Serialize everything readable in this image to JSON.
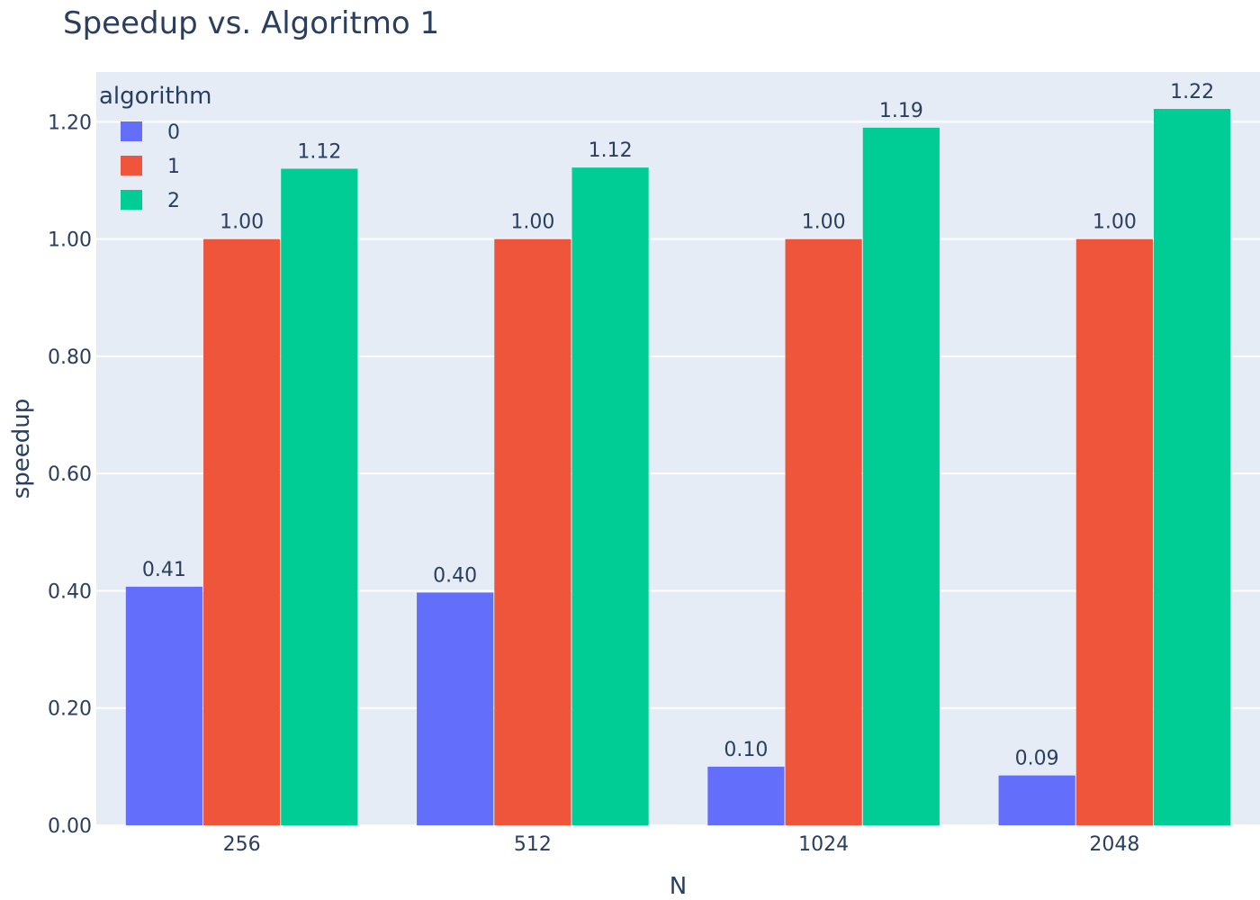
{
  "chart_data": {
    "type": "bar",
    "title": "Speedup vs. Algoritmo 1",
    "xlabel": "N",
    "ylabel": "speedup",
    "categories": [
      "256",
      "512",
      "1024",
      "2048"
    ],
    "ylim": [
      0,
      1.285
    ],
    "yticks": [
      "0.00",
      "0.20",
      "0.40",
      "0.60",
      "0.80",
      "1.00",
      "1.20"
    ],
    "grid": true,
    "legend": {
      "title": "algorithm",
      "placement": "top-left"
    },
    "series": [
      {
        "name": "0",
        "color": "#636efa",
        "values": [
          0.407,
          0.397,
          0.1,
          0.085
        ],
        "labels": [
          "0.41",
          "0.40",
          "0.10",
          "0.09"
        ]
      },
      {
        "name": "1",
        "color": "#ef553b",
        "values": [
          1.0,
          1.0,
          1.0,
          1.0
        ],
        "labels": [
          "1.00",
          "1.00",
          "1.00",
          "1.00"
        ]
      },
      {
        "name": "2",
        "color": "#00cc96",
        "values": [
          1.12,
          1.122,
          1.19,
          1.222
        ],
        "labels": [
          "1.12",
          "1.12",
          "1.19",
          "1.22"
        ]
      }
    ],
    "colors": {
      "plot_bg": "#e5ecf6",
      "grid": "#ffffff"
    }
  }
}
